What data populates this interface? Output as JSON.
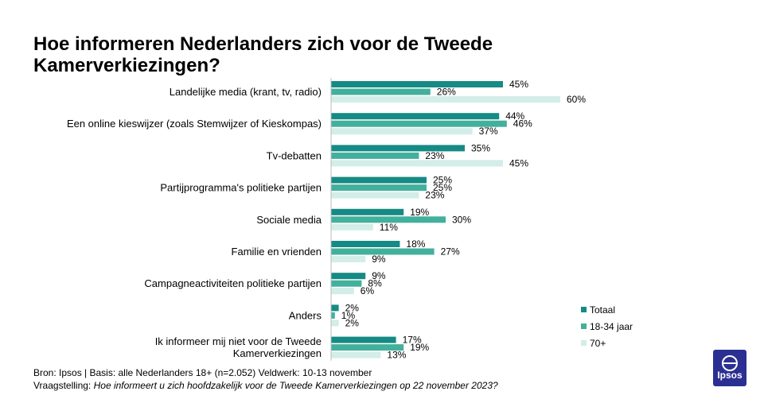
{
  "title": "Hoe informeren Nederlanders zich voor de Tweede Kamerverkiezingen?",
  "footer": {
    "source": "Bron: Ipsos | Basis: alle Nederlanders  18+ (n=2.052) Veldwerk: 10-13 november",
    "question_label": "Vraagstelling:",
    "question": "Hoe informeert u zich hoofdzakelijk voor de Tweede  Kamerverkiezingen op 22 november 2023?"
  },
  "logo_text": "Ipsos",
  "chart_data": {
    "type": "bar",
    "orientation": "horizontal",
    "title": "",
    "xlabel": "",
    "ylabel": "",
    "xlim": [
      0,
      60
    ],
    "value_suffix": "%",
    "legend_position": "right",
    "categories": [
      [
        "Landelijke media (krant, tv, radio)"
      ],
      [
        "Een online kieswijzer (zoals Stemwijzer of Kieskompas)"
      ],
      [
        "Tv-debatten"
      ],
      [
        "Partijprogramma's politieke partijen"
      ],
      [
        "Sociale media"
      ],
      [
        "Familie en vrienden"
      ],
      [
        "Campagneactiviteiten politieke partijen"
      ],
      [
        "Anders"
      ],
      [
        "Ik informeer mij niet voor de Tweede",
        "Kamerverkiezingen"
      ]
    ],
    "series": [
      {
        "name": "Totaal",
        "color": "#168a84",
        "values": [
          45,
          44,
          35,
          25,
          19,
          18,
          9,
          2,
          17
        ]
      },
      {
        "name": "18-34 jaar",
        "color": "#43b09c",
        "values": [
          26,
          46,
          23,
          25,
          30,
          27,
          8,
          1,
          19
        ]
      },
      {
        "name": "70+",
        "color": "#d3ede9",
        "values": [
          60,
          37,
          45,
          23,
          11,
          9,
          6,
          2,
          13
        ]
      }
    ]
  }
}
